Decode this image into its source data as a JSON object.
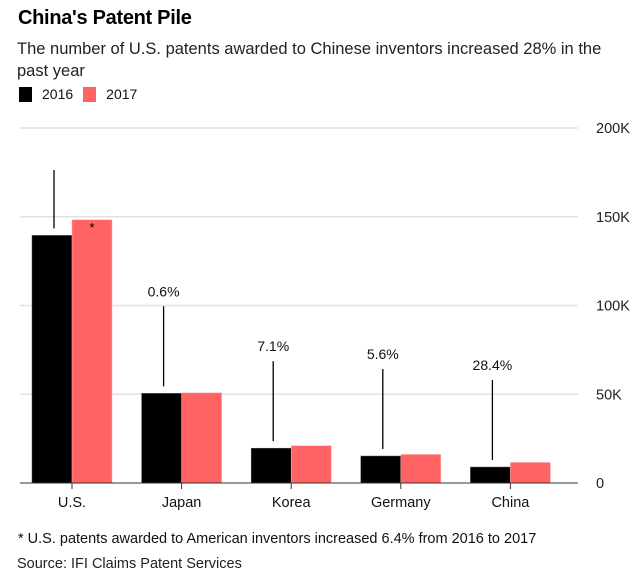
{
  "header": {
    "title": "China's Patent Pile",
    "subtitle": "The number of U.S. patents awarded to Chinese inventors increased 28% in the past year"
  },
  "legend": [
    {
      "label": "2016",
      "color": "#000000"
    },
    {
      "label": "2017",
      "color": "#ff6363"
    }
  ],
  "footer": {
    "footnote": "* U.S. patents awarded to American inventors increased 6.4% from 2016 to 2017",
    "source": "Source: IFI Claims Patent Services"
  },
  "chart_data": {
    "type": "bar",
    "title": "China's Patent Pile",
    "subtitle": "The number of U.S. patents awarded to Chinese inventors increased 28% in the past year",
    "xlabel": "",
    "ylabel": "",
    "categories": [
      "U.S.",
      "Japan",
      "Korea",
      "Germany",
      "China"
    ],
    "series": [
      {
        "name": "2016",
        "color": "#000000",
        "values": [
          139500,
          50500,
          19600,
          15200,
          9000
        ]
      },
      {
        "name": "2017",
        "color": "#ff6363",
        "values": [
          148300,
          50800,
          21000,
          16100,
          11600
        ]
      }
    ],
    "annotations": [
      "",
      "0.6%",
      "7.1%",
      "5.6%",
      "28.4%"
    ],
    "us_marker": "*",
    "ylim": [
      0,
      200000
    ],
    "yticks": [
      0,
      50000,
      100000,
      150000,
      200000
    ],
    "ytick_labels": [
      "0",
      "50K",
      "100K",
      "150K",
      "200K"
    ],
    "yaxis_position": "right",
    "grid": true,
    "legend_position": "top-left"
  }
}
